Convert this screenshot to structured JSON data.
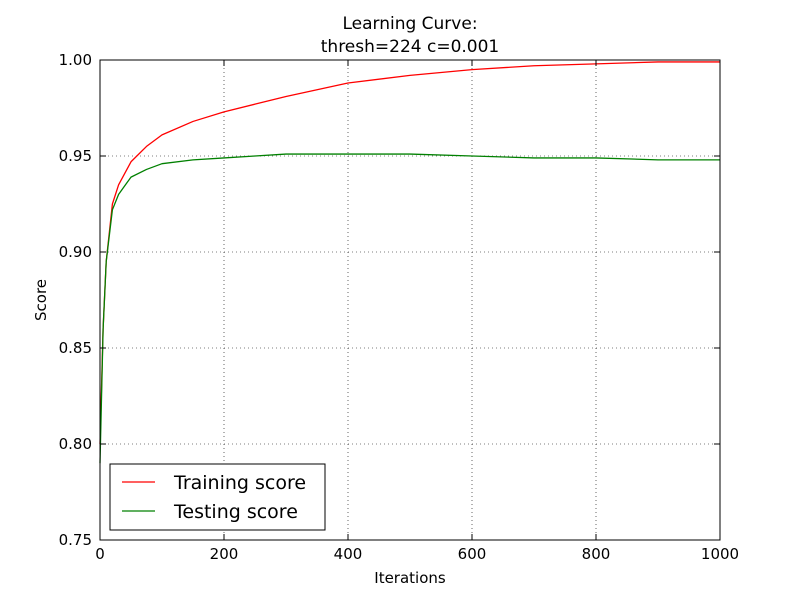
{
  "chart_data": {
    "type": "line",
    "title": [
      "Learning Curve:",
      "thresh=224 c=0.001"
    ],
    "xlabel": "Iterations",
    "ylabel": "Score",
    "xlim": [
      0,
      1000
    ],
    "ylim": [
      0.75,
      1.0
    ],
    "x_ticks": [
      "0",
      "200",
      "400",
      "600",
      "800",
      "1000"
    ],
    "y_ticks": [
      "0.75",
      "0.80",
      "0.85",
      "0.90",
      "0.95",
      "1.00"
    ],
    "grid": true,
    "legend_position": "lower-left",
    "series": [
      {
        "name": "Training score",
        "color": "#ff0000",
        "x": [
          0,
          5,
          10,
          20,
          30,
          50,
          75,
          100,
          150,
          200,
          250,
          300,
          400,
          500,
          600,
          700,
          800,
          900,
          1000
        ],
        "y": [
          0.8,
          0.86,
          0.895,
          0.925,
          0.935,
          0.947,
          0.955,
          0.961,
          0.968,
          0.973,
          0.977,
          0.981,
          0.988,
          0.992,
          0.995,
          0.997,
          0.998,
          0.999,
          0.999
        ]
      },
      {
        "name": "Testing score",
        "color": "#008000",
        "x": [
          0,
          5,
          10,
          20,
          30,
          50,
          75,
          100,
          150,
          200,
          250,
          300,
          400,
          500,
          600,
          700,
          800,
          900,
          1000
        ],
        "y": [
          0.79,
          0.86,
          0.895,
          0.922,
          0.93,
          0.939,
          0.943,
          0.946,
          0.948,
          0.949,
          0.95,
          0.951,
          0.951,
          0.951,
          0.95,
          0.949,
          0.949,
          0.948,
          0.948
        ]
      }
    ]
  }
}
